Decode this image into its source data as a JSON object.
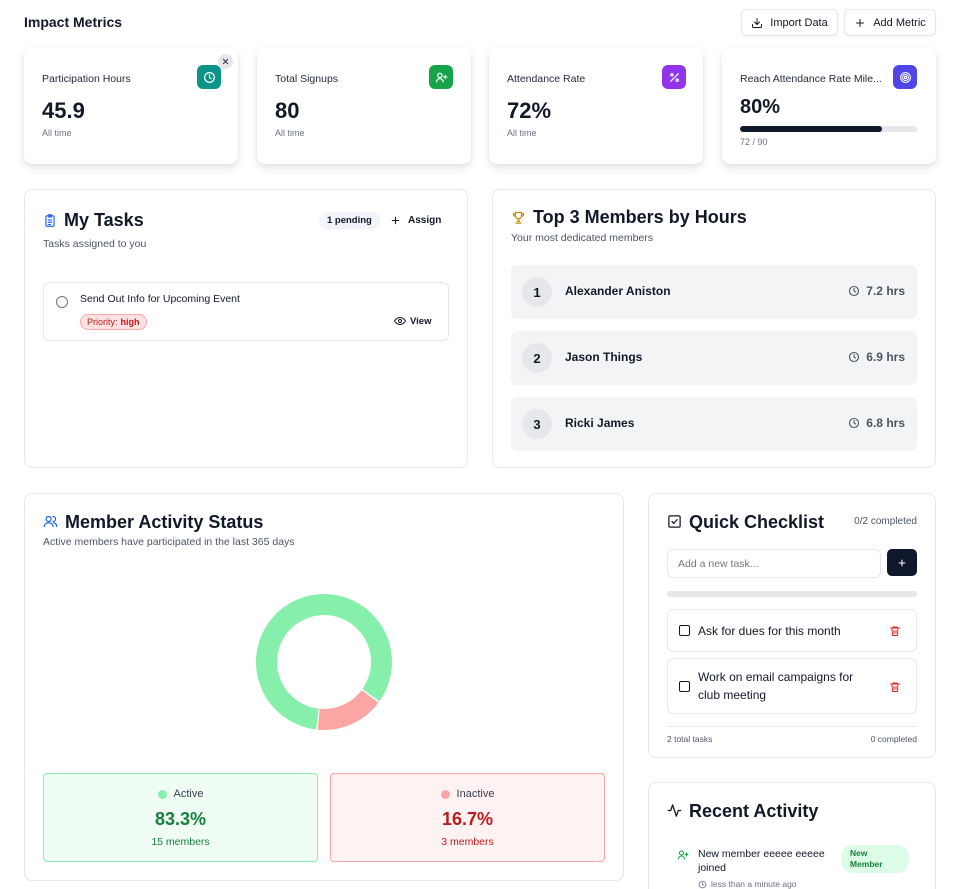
{
  "header": {
    "title": "Impact Metrics",
    "import_label": "Import Data",
    "add_label": "Add Metric"
  },
  "metrics": [
    {
      "label": "Participation Hours",
      "value": "45.9",
      "sub": "All time",
      "color": "#0d9488",
      "icon": "clock-icon"
    },
    {
      "label": "Total Signups",
      "value": "80",
      "sub": "All time",
      "color": "#16a34a",
      "icon": "user-plus-icon"
    },
    {
      "label": "Attendance Rate",
      "value": "72%",
      "sub": "All time",
      "color": "#9333ea",
      "icon": "percent-icon"
    },
    {
      "label": "Reach Attendance Rate Mile...",
      "value": "80%",
      "progress_text": "72 / 90",
      "progress": 0.8,
      "color": "#4f46e5",
      "icon": "target-icon"
    }
  ],
  "tasks": {
    "title": "My Tasks",
    "subtitle": "Tasks assigned to you",
    "pending_badge": "1 pending",
    "assign_label": "Assign",
    "items": [
      {
        "title": "Send Out Info for Upcoming Event",
        "priority_label": "Priority:",
        "priority": "high",
        "view_label": "View"
      }
    ]
  },
  "top_members": {
    "title": "Top 3 Members by Hours",
    "subtitle": "Your most dedicated members",
    "members": [
      {
        "rank": "1",
        "name": "Alexander Aniston",
        "hours": "7.2 hrs"
      },
      {
        "rank": "2",
        "name": "Jason Things",
        "hours": "6.9 hrs"
      },
      {
        "rank": "3",
        "name": "Ricki James",
        "hours": "6.8 hrs"
      }
    ]
  },
  "activity_status": {
    "title": "Member Activity Status",
    "subtitle": "Active members have participated in the last 365 days",
    "active": {
      "label": "Active",
      "percent": "83.3%",
      "count": "15 members",
      "color": "#86efac"
    },
    "inactive": {
      "label": "Inactive",
      "percent": "16.7%",
      "count": "3 members",
      "color": "#fca5a5"
    }
  },
  "chart_data": {
    "type": "pie",
    "categories": [
      "Active",
      "Inactive"
    ],
    "values": [
      15,
      3
    ],
    "colors": [
      "#86efac",
      "#fca5a5"
    ],
    "donut": true
  },
  "checklist": {
    "title": "Quick Checklist",
    "completed_text": "0/2 completed",
    "input_placeholder": "Add a new task...",
    "items": [
      {
        "text": "Ask for dues for this month",
        "checked": false
      },
      {
        "text": "Work on email campaigns for club meeting",
        "checked": false
      }
    ],
    "total_text": "2 total tasks",
    "completed_count_text": "0 completed"
  },
  "recent_activity": {
    "title": "Recent Activity",
    "items": [
      {
        "text": "New member eeeee eeeee joined",
        "time": "less than a minute ago",
        "badge": "New Member"
      }
    ]
  }
}
